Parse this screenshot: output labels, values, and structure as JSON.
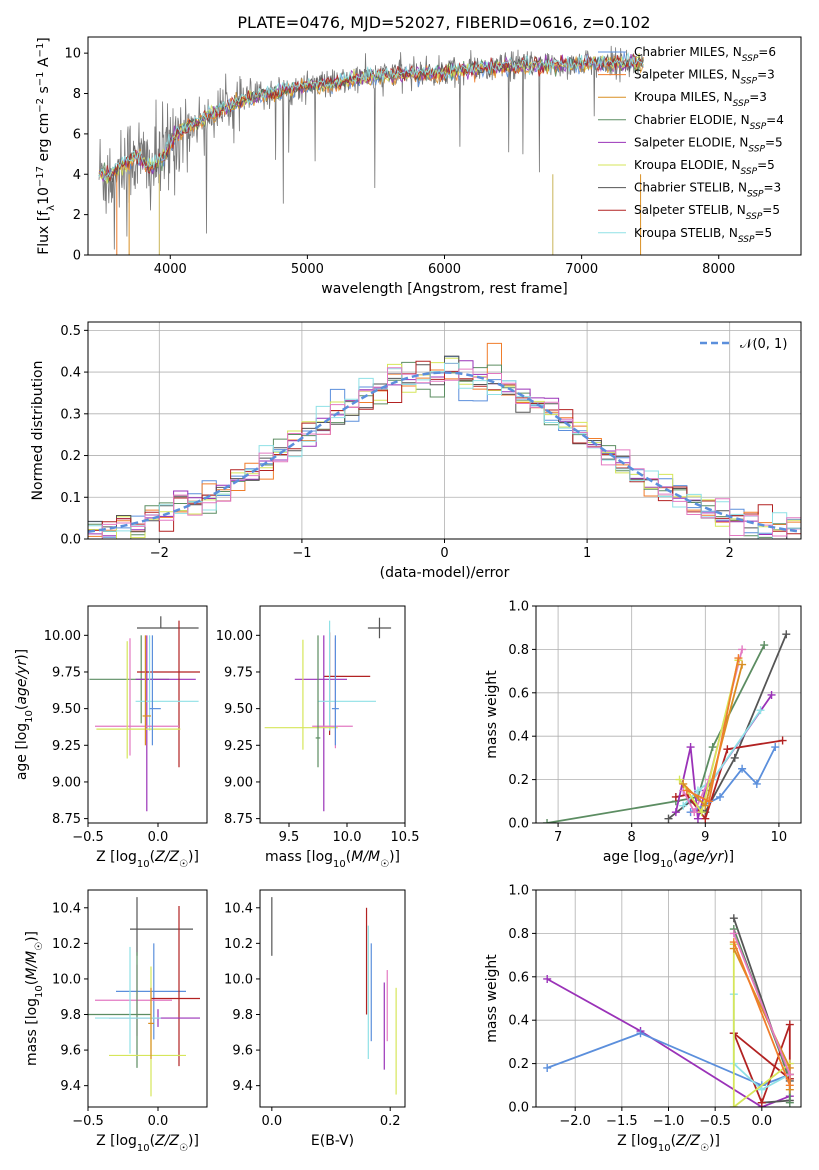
{
  "figure": {
    "title": "PLATE=0476, MJD=52027, FIBERID=0616, z=0.102"
  },
  "colors": {
    "Chabrier MILES": "#5b8fdc",
    "Salpeter MILES": "#f07d2b",
    "Kroupa MILES": "#d98f23",
    "Chabrier ELODIE": "#5c8d62",
    "Salpeter ELODIE": "#9a32b8",
    "Kroupa ELODIE": "#d6e65a",
    "Chabrier STELIB": "#555555",
    "Salpeter STELIB": "#b22222",
    "Kroupa STELIB": "#8fe1e6",
    "Pink": "#e37ac2",
    "Data": "#777777"
  },
  "chart_data": [
    {
      "id": "spectrum",
      "type": "line",
      "xlabel": "wavelength [Angstrom, rest frame]",
      "ylabel": "Flux [f_λ 10^-17 erg cm^-2 s^-1 A^-1]",
      "xlim": [
        3400,
        8600
      ],
      "ylim": [
        0,
        10.8
      ],
      "xticks": [
        4000,
        5000,
        6000,
        7000,
        8000
      ],
      "yticks": [
        0,
        2,
        4,
        6,
        8,
        10
      ],
      "grid": false,
      "legend_position": "right",
      "legend": [
        {
          "label": "Chabrier MILES",
          "nssp": 6
        },
        {
          "label": "Salpeter MILES",
          "nssp": 3
        },
        {
          "label": "Kroupa MILES",
          "nssp": 3
        },
        {
          "label": "Chabrier ELODIE",
          "nssp": 4
        },
        {
          "label": "Salpeter ELODIE",
          "nssp": 5
        },
        {
          "label": "Kroupa ELODIE",
          "nssp": 5
        },
        {
          "label": "Chabrier STELIB",
          "nssp": 3
        },
        {
          "label": "Salpeter STELIB",
          "nssp": 5
        },
        {
          "label": "Kroupa STELIB",
          "nssp": 5
        }
      ],
      "continuum": {
        "x": [
          3480,
          3550,
          3650,
          3750,
          3850,
          3950,
          4050,
          4200,
          4400,
          4600,
          4800,
          5000,
          5200,
          5400,
          5600,
          5800,
          6000,
          6200,
          6400,
          6600,
          6800,
          7000,
          7200,
          7400,
          7600,
          7800,
          8000,
          8200,
          8400,
          8500
        ],
        "y": [
          4.1,
          3.9,
          4.4,
          4.9,
          4.3,
          4.8,
          6.1,
          6.6,
          7.3,
          7.8,
          8.1,
          8.4,
          8.5,
          8.8,
          8.9,
          9.0,
          9.0,
          9.2,
          9.3,
          9.4,
          9.4,
          9.5,
          9.5,
          9.5,
          9.6,
          9.6,
          9.6,
          9.6,
          9.7,
          9.6
        ]
      },
      "model_range": [
        3480,
        7450
      ],
      "data_range": [
        3480,
        7450
      ]
    },
    {
      "id": "residuals",
      "type": "bar",
      "xlabel": "(data-model)/error",
      "ylabel": "Normed distribution",
      "xlim": [
        -2.5,
        2.5
      ],
      "ylim": [
        0,
        0.52
      ],
      "xticks": [
        -2,
        -1,
        0,
        1,
        2
      ],
      "yticks": [
        0.0,
        0.1,
        0.2,
        0.3,
        0.4,
        0.5
      ],
      "grid": true,
      "legend_position": "top-right",
      "legend": [
        "𝒩(0, 1)"
      ],
      "bin_width": 0.1,
      "reference": {
        "name": "𝒩(0, 1)",
        "mean": 0,
        "sigma": 1
      }
    },
    {
      "id": "age_vs_Z",
      "type": "scatter",
      "xlabel": "Z [log10(Z/Z☉)]",
      "ylabel": "age [log10(age/yr)]",
      "xlim": [
        -0.5,
        0.35
      ],
      "ylim": [
        8.72,
        10.2
      ],
      "xticks": [
        -0.5,
        0.0
      ],
      "yticks": [
        8.75,
        9.0,
        9.25,
        9.5,
        9.75,
        10.0
      ],
      "grid": false,
      "points": [
        {
          "x": 0.02,
          "y": 10.05,
          "xerr": [
            0.17,
            0.27
          ],
          "yerr": [
            0.0,
            0.08
          ],
          "c": "Chabrier STELIB"
        },
        {
          "x": -0.12,
          "y": 9.7,
          "xerr": [
            0.37,
            0.2
          ],
          "yerr": [
            0.3,
            0.3
          ],
          "c": "Chabrier ELODIE"
        },
        {
          "x": -0.08,
          "y": 9.7,
          "xerr": [
            0.08,
            0.35
          ],
          "yerr": [
            0.9,
            0.3
          ],
          "c": "Salpeter ELODIE"
        },
        {
          "x": 0.15,
          "y": 9.75,
          "xerr": [
            0.3,
            0.15
          ],
          "yerr": [
            0.65,
            0.35
          ],
          "c": "Salpeter STELIB"
        },
        {
          "x": -0.06,
          "y": 9.55,
          "xerr": [
            0.1,
            0.35
          ],
          "yerr": [
            0.2,
            0.45
          ],
          "c": "Kroupa STELIB"
        },
        {
          "x": -0.2,
          "y": 9.38,
          "xerr": [
            0.25,
            0.35
          ],
          "yerr": [
            0.2,
            0.6
          ],
          "c": "Pink"
        },
        {
          "x": -0.22,
          "y": 9.36,
          "xerr": [
            0.22,
            0.38
          ],
          "yerr": [
            0.2,
            0.6
          ],
          "c": "Kroupa ELODIE"
        },
        {
          "x": -0.04,
          "y": 9.5,
          "xerr": [
            0.02,
            0.06
          ],
          "yerr": [
            0.25,
            0.5
          ],
          "c": "Chabrier MILES"
        },
        {
          "x": -0.09,
          "y": 9.45,
          "xerr": [
            0.02,
            0.04
          ],
          "yerr": [
            0.2,
            0.55
          ],
          "c": "Kroupa MILES"
        }
      ]
    },
    {
      "id": "age_vs_mass",
      "type": "scatter",
      "xlabel": "mass [log10(M/M☉)]",
      "ylabel": "",
      "xlim": [
        9.25,
        10.5
      ],
      "ylim": [
        8.72,
        10.2
      ],
      "xticks": [
        9.5,
        10.0,
        10.5
      ],
      "yticks": [
        8.75,
        9.0,
        9.25,
        9.5,
        9.75,
        10.0
      ],
      "grid": false,
      "points": [
        {
          "x": 10.28,
          "y": 10.05,
          "xerr": [
            0.1,
            0.1
          ],
          "yerr": [
            0.07,
            0.07
          ],
          "c": "Chabrier STELIB"
        },
        {
          "x": 9.85,
          "y": 9.72,
          "xerr": [
            0.05,
            0.35
          ],
          "yerr": [
            0.4,
            0.3
          ],
          "c": "Salpeter STELIB"
        },
        {
          "x": 9.8,
          "y": 9.7,
          "xerr": [
            0.25,
            0.2
          ],
          "yerr": [
            0.9,
            0.3
          ],
          "c": "Salpeter ELODIE"
        },
        {
          "x": 9.85,
          "y": 9.55,
          "xerr": [
            0.1,
            0.4
          ],
          "yerr": [
            0.2,
            0.55
          ],
          "c": "Kroupa STELIB"
        },
        {
          "x": 9.62,
          "y": 9.37,
          "xerr": [
            0.33,
            0.3
          ],
          "yerr": [
            0.15,
            0.6
          ],
          "c": "Kroupa ELODIE"
        },
        {
          "x": 9.9,
          "y": 9.38,
          "xerr": [
            0.2,
            0.15
          ],
          "yerr": [
            0.15,
            0.6
          ],
          "c": "Pink"
        },
        {
          "x": 9.9,
          "y": 9.5,
          "xerr": [
            0.03,
            0.03
          ],
          "yerr": [
            0.25,
            0.5
          ],
          "c": "Chabrier MILES"
        },
        {
          "x": 9.75,
          "y": 9.3,
          "xerr": [
            0.02,
            0.02
          ],
          "yerr": [
            0.2,
            0.7
          ],
          "c": "Chabrier ELODIE"
        }
      ]
    },
    {
      "id": "mass_weight_vs_age",
      "type": "line",
      "xlabel": "age [log10(age/yr)]",
      "ylabel": "mass weight",
      "xlim": [
        6.7,
        10.3
      ],
      "ylim": [
        0,
        1.0
      ],
      "xticks": [
        7,
        8,
        9,
        10
      ],
      "yticks": [
        0.0,
        0.2,
        0.4,
        0.6,
        0.8,
        1.0
      ],
      "grid": true,
      "series": [
        {
          "c": "Chabrier ELODIE",
          "x": [
            6.85,
            8.6,
            8.9,
            9.1,
            9.8
          ],
          "y": [
            0.0,
            0.1,
            0.12,
            0.35,
            0.82
          ]
        },
        {
          "c": "Chabrier STELIB",
          "x": [
            8.5,
            8.8,
            9.0,
            9.4,
            10.1
          ],
          "y": [
            0.02,
            0.1,
            0.05,
            0.3,
            0.87
          ]
        },
        {
          "c": "Salpeter STELIB",
          "x": [
            8.6,
            8.75,
            9.0,
            9.3,
            10.05
          ],
          "y": [
            0.12,
            0.13,
            0.02,
            0.34,
            0.38
          ]
        },
        {
          "c": "Salpeter ELODIE",
          "x": [
            8.6,
            8.8,
            8.9,
            9.0,
            9.9
          ],
          "y": [
            0.05,
            0.35,
            0.02,
            0.15,
            0.59
          ]
        },
        {
          "c": "Chabrier MILES",
          "x": [
            8.8,
            9.2,
            9.5,
            9.7,
            9.95
          ],
          "y": [
            0.05,
            0.12,
            0.25,
            0.18,
            0.35
          ]
        },
        {
          "c": "Kroupa STELIB",
          "x": [
            8.7,
            8.9,
            9.1,
            9.75
          ],
          "y": [
            0.08,
            0.15,
            0.2,
            0.52
          ]
        },
        {
          "c": "Pink",
          "x": [
            8.7,
            8.85,
            9.05,
            9.5
          ],
          "y": [
            0.15,
            0.05,
            0.2,
            0.8
          ]
        },
        {
          "c": "Kroupa ELODIE",
          "x": [
            8.65,
            8.95,
            9.45
          ],
          "y": [
            0.2,
            0.05,
            0.75
          ]
        },
        {
          "c": "Kroupa MILES",
          "x": [
            8.7,
            9.0,
            9.5
          ],
          "y": [
            0.18,
            0.08,
            0.73
          ]
        },
        {
          "c": "Salpeter MILES",
          "x": [
            8.75,
            9.05,
            9.45
          ],
          "y": [
            0.15,
            0.1,
            0.76
          ]
        }
      ]
    },
    {
      "id": "mass_vs_Z",
      "type": "scatter",
      "xlabel": "Z [log10(Z/Z☉)]",
      "ylabel": "mass [log10(M/M☉)]",
      "xlim": [
        -0.5,
        0.35
      ],
      "ylim": [
        9.28,
        10.5
      ],
      "xticks": [
        -0.5,
        0.0
      ],
      "yticks": [
        9.4,
        9.6,
        9.8,
        10.0,
        10.2,
        10.4
      ],
      "grid": false,
      "points": [
        {
          "x": -0.15,
          "y": 10.28,
          "xerr": [
            0.05,
            0.4
          ],
          "yerr": [
            0.15,
            0.18
          ],
          "c": "Chabrier STELIB"
        },
        {
          "x": -0.03,
          "y": 9.93,
          "xerr": [
            0.27,
            0.23
          ],
          "yerr": [
            0.27,
            0.27
          ],
          "c": "Chabrier MILES"
        },
        {
          "x": 0.15,
          "y": 9.89,
          "xerr": [
            0.2,
            0.15
          ],
          "yerr": [
            0.38,
            0.52
          ],
          "c": "Salpeter STELIB"
        },
        {
          "x": -0.15,
          "y": 9.88,
          "xerr": [
            0.3,
            0.25
          ],
          "yerr": [
            0.2,
            0.2
          ],
          "c": "Pink"
        },
        {
          "x": -0.15,
          "y": 9.8,
          "xerr": [
            0.35,
            0.1
          ],
          "yerr": [
            0.3,
            0.35
          ],
          "c": "Chabrier ELODIE"
        },
        {
          "x": 0.0,
          "y": 9.78,
          "xerr": [
            0.35,
            0.3
          ],
          "yerr": [
            0.05,
            0.05
          ],
          "c": "Salpeter ELODIE"
        },
        {
          "x": -0.2,
          "y": 9.78,
          "xerr": [
            0.25,
            0.22
          ],
          "yerr": [
            0.2,
            0.4
          ],
          "c": "Kroupa STELIB"
        },
        {
          "x": -0.05,
          "y": 9.57,
          "xerr": [
            0.3,
            0.25
          ],
          "yerr": [
            0.23,
            0.5
          ],
          "c": "Kroupa ELODIE"
        },
        {
          "x": -0.05,
          "y": 9.75,
          "xerr": [
            0.02,
            0.02
          ],
          "yerr": [
            0.2,
            0.2
          ],
          "c": "Kroupa MILES"
        }
      ]
    },
    {
      "id": "mass_vs_ebv",
      "type": "scatter",
      "xlabel": "E(B-V)",
      "ylabel": "",
      "xlim": [
        -0.02,
        0.225
      ],
      "ylim": [
        9.28,
        10.5
      ],
      "xticks": [
        0.0,
        0.2
      ],
      "yticks": [
        9.4,
        9.6,
        9.8,
        10.0,
        10.2,
        10.4
      ],
      "grid": false,
      "points": [
        {
          "x": 0.0,
          "y": 10.28,
          "xerr": [
            0,
            0
          ],
          "yerr": [
            0.15,
            0.18
          ],
          "c": "Chabrier STELIB"
        },
        {
          "x": 0.16,
          "y": 10.0,
          "xerr": [
            0,
            0
          ],
          "yerr": [
            0.2,
            0.4
          ],
          "c": "Salpeter STELIB"
        },
        {
          "x": 0.163,
          "y": 9.85,
          "xerr": [
            0,
            0
          ],
          "yerr": [
            0.3,
            0.45
          ],
          "c": "Kroupa STELIB"
        },
        {
          "x": 0.168,
          "y": 9.9,
          "xerr": [
            0,
            0
          ],
          "yerr": [
            0.25,
            0.3
          ],
          "c": "Chabrier MILES"
        },
        {
          "x": 0.19,
          "y": 9.75,
          "xerr": [
            0,
            0
          ],
          "yerr": [
            0.26,
            0.23
          ],
          "c": "Salpeter ELODIE"
        },
        {
          "x": 0.195,
          "y": 9.85,
          "xerr": [
            0,
            0
          ],
          "yerr": [
            0.2,
            0.2
          ],
          "c": "Pink"
        },
        {
          "x": 0.21,
          "y": 9.65,
          "xerr": [
            0,
            0
          ],
          "yerr": [
            0.3,
            0.3
          ],
          "c": "Kroupa ELODIE"
        }
      ]
    },
    {
      "id": "mass_weight_vs_Z",
      "type": "line",
      "xlabel": "Z [log10(Z/Z☉)]",
      "ylabel": "mass weight",
      "xlim": [
        -2.42,
        0.42
      ],
      "ylim": [
        0,
        1.0
      ],
      "xticks": [
        -2.0,
        -1.5,
        -1.0,
        -0.5,
        0.0
      ],
      "yticks": [
        0.0,
        0.2,
        0.4,
        0.6,
        0.8,
        1.0
      ],
      "grid": true,
      "series": [
        {
          "c": "Salpeter ELODIE",
          "x": [
            -2.3,
            -1.3,
            0.0,
            0.3
          ],
          "y": [
            0.59,
            0.35,
            0.0,
            0.05
          ]
        },
        {
          "c": "Chabrier MILES",
          "x": [
            -2.3,
            -1.3,
            0.0,
            0.3
          ],
          "y": [
            0.18,
            0.34,
            0.1,
            0.15
          ]
        },
        {
          "c": "Chabrier STELIB",
          "x": [
            -0.3,
            0.3,
            0.3,
            0.0
          ],
          "y": [
            0.87,
            0.12,
            0.03,
            0.02
          ]
        },
        {
          "c": "Chabrier ELODIE",
          "x": [
            -0.3,
            0.3,
            0.3
          ],
          "y": [
            0.82,
            0.13,
            0.02
          ]
        },
        {
          "c": "Salpeter STELIB",
          "x": [
            -0.3,
            0.0,
            0.3,
            0.3,
            -0.3
          ],
          "y": [
            0.34,
            0.02,
            0.38,
            0.13,
            0.34
          ]
        },
        {
          "c": "Kroupa STELIB",
          "x": [
            -0.3,
            -0.3,
            0.0,
            0.3
          ],
          "y": [
            0.52,
            0.2,
            0.08,
            0.15
          ]
        },
        {
          "c": "Kroupa ELODIE",
          "x": [
            -0.3,
            -0.3,
            0.3
          ],
          "y": [
            0.75,
            0.0,
            0.2
          ]
        },
        {
          "c": "Kroupa MILES",
          "x": [
            -0.3,
            0.3,
            0.3
          ],
          "y": [
            0.73,
            0.18,
            0.08
          ]
        },
        {
          "c": "Salpeter MILES",
          "x": [
            -0.3,
            0.3,
            0.3
          ],
          "y": [
            0.76,
            0.1,
            0.15
          ]
        },
        {
          "c": "Pink",
          "x": [
            -0.3,
            0.3
          ],
          "y": [
            0.8,
            0.15
          ]
        }
      ]
    }
  ]
}
